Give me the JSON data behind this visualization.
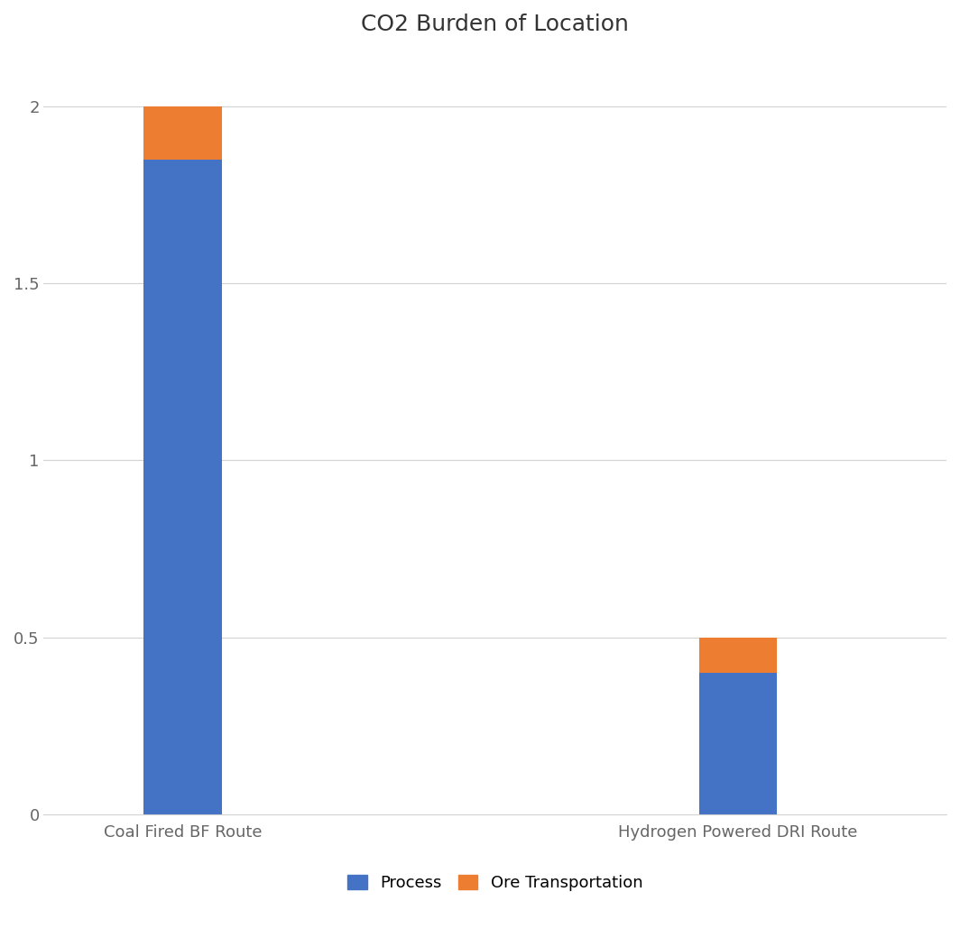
{
  "title": "CO2 Burden of Location",
  "categories": [
    "Coal Fired BF Route",
    "Hydrogen Powered DRI Route"
  ],
  "process_values": [
    1.85,
    0.4
  ],
  "ore_transport_values": [
    0.15,
    0.1
  ],
  "process_color": "#4472C4",
  "ore_transport_color": "#ED7D31",
  "ylim": [
    0,
    2.15
  ],
  "ytick_values": [
    0,
    0.5,
    1.0,
    1.5,
    2.0
  ],
  "ytick_labels": [
    "0",
    "0.5",
    "1",
    "1.5",
    "2"
  ],
  "legend_process": "Process",
  "legend_ore": "Ore Transportation",
  "background_color": "#ffffff",
  "grid_color": "#d3d3d3",
  "title_fontsize": 18,
  "tick_fontsize": 13,
  "legend_fontsize": 13,
  "bar_width": 0.28
}
